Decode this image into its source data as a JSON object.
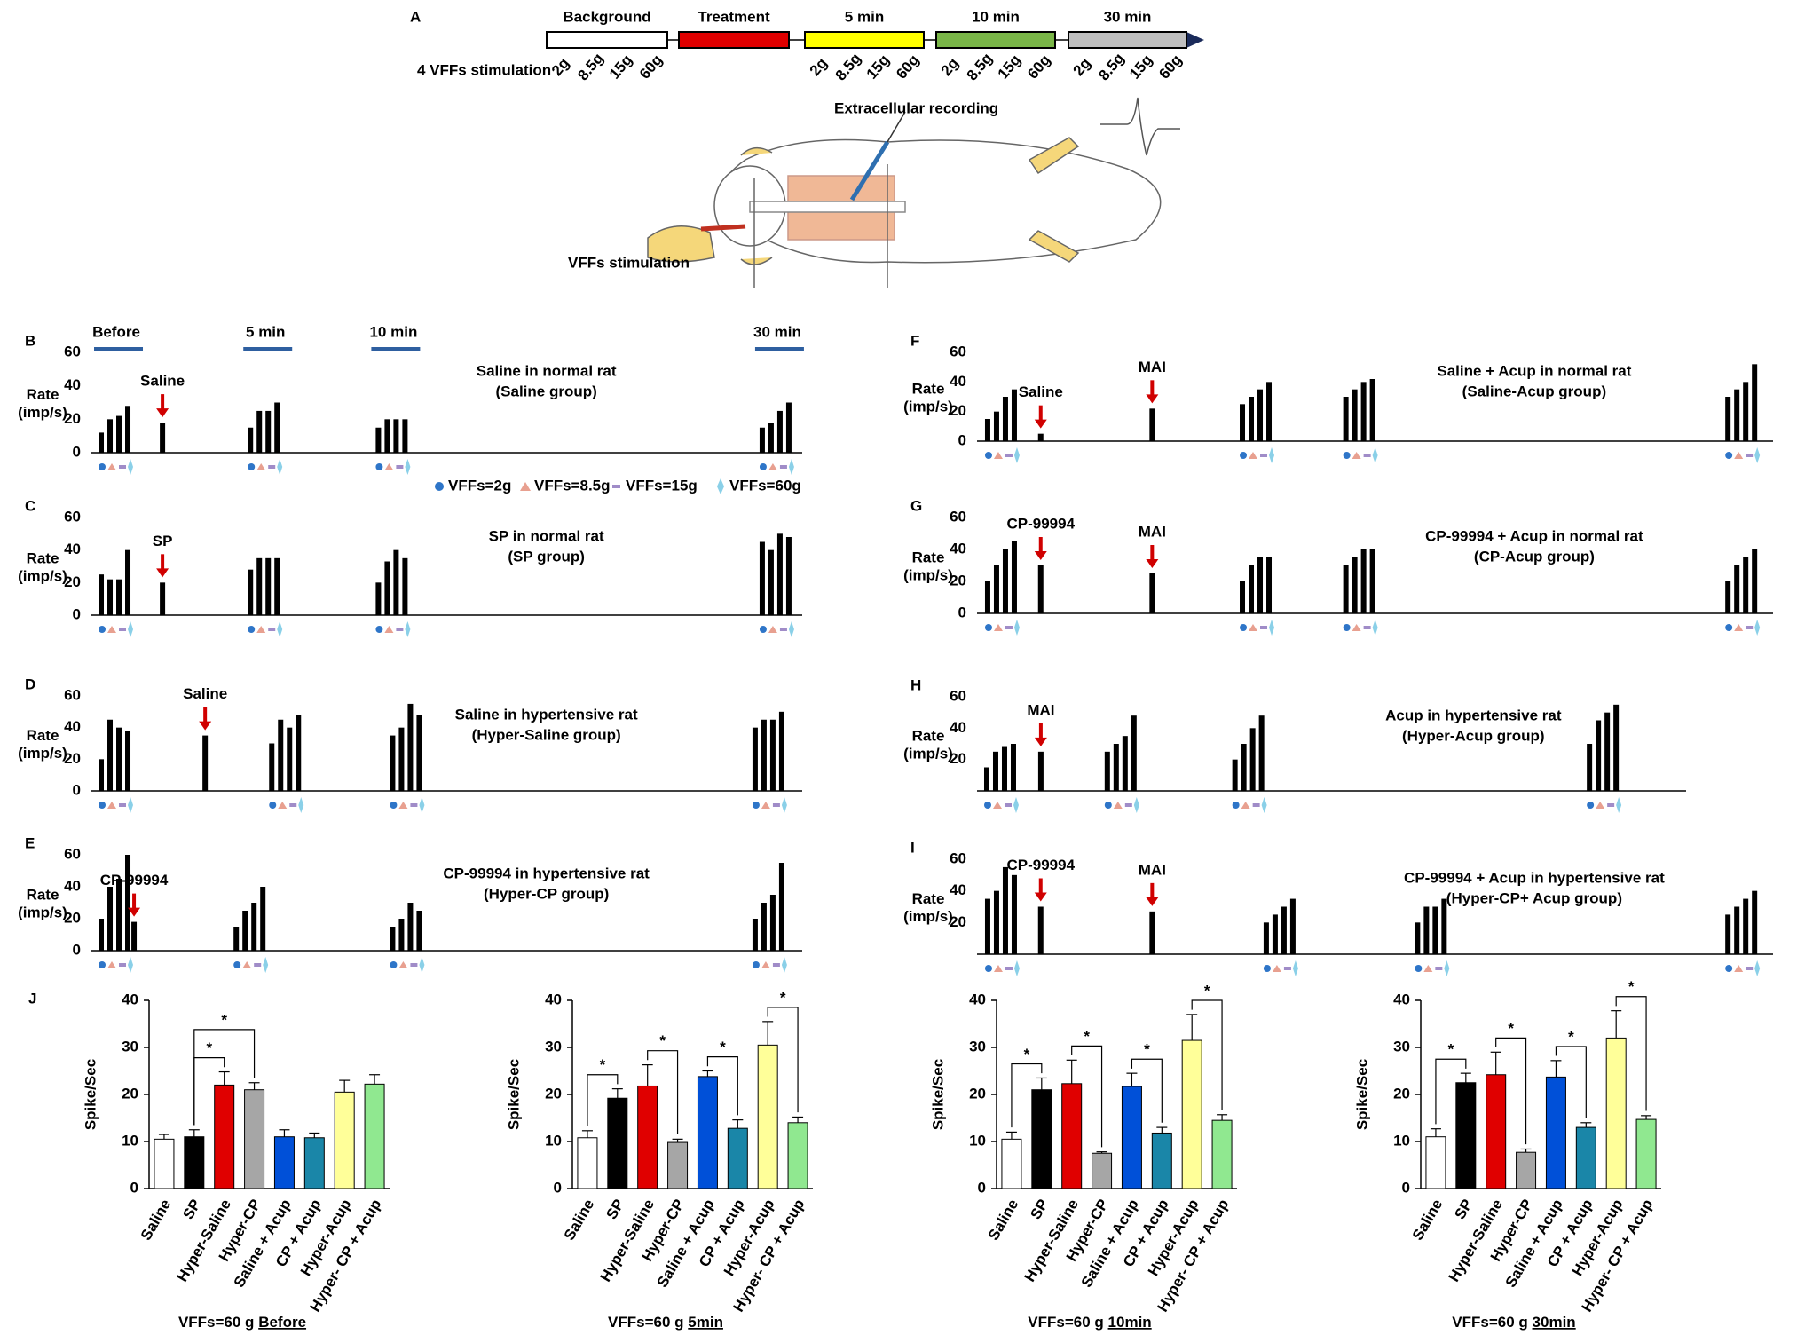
{
  "panel_a": {
    "label": "A",
    "phases": [
      {
        "name": "Background",
        "color": "#ffffff"
      },
      {
        "name": "Treatment",
        "color": "#e00000"
      },
      {
        "name": "5 min",
        "color": "#ffff00"
      },
      {
        "name": "10 min",
        "color": "#7ab648"
      },
      {
        "name": "30 min",
        "color": "#bfbfbf"
      }
    ],
    "stim_label": "4 VFFs stimulation",
    "grams": [
      "2g",
      "8.5g",
      "15g",
      "60g"
    ],
    "recording": "Extracellular recording",
    "stimulation": "VFFs stimulation"
  },
  "stim_legend": [
    "VFFs=2g",
    "VFFs=8.5g",
    "VFFs=15g",
    "VFFs=60g"
  ],
  "chart_data": [
    {
      "type": "trace",
      "label": "B",
      "title": "Saline in normal rat",
      "subtitle": "(Saline group)",
      "ylabel": "Rate",
      "ylabel_unit": "(imp/s)",
      "ylim": [
        0,
        60
      ],
      "yticks": [
        0,
        20,
        40,
        60
      ],
      "epoch_labels": [
        "Before",
        "5 min",
        "10 min",
        "30 min"
      ],
      "events": [
        {
          "name": "Saline",
          "value": 18
        }
      ],
      "epochs": [
        [
          12,
          20,
          22,
          28
        ],
        [
          15,
          25,
          25,
          30
        ],
        [
          15,
          20,
          20,
          20
        ],
        [
          15,
          18,
          25,
          30
        ]
      ]
    },
    {
      "type": "trace",
      "label": "C",
      "title": "SP in normal rat",
      "subtitle": "(SP group)",
      "ylabel": "Rate",
      "ylabel_unit": "(imp/s)",
      "ylim": [
        0,
        60
      ],
      "yticks": [
        0,
        20,
        40,
        60
      ],
      "events": [
        {
          "name": "SP",
          "value": 20
        }
      ],
      "epochs": [
        [
          25,
          22,
          22,
          40
        ],
        [
          28,
          35,
          35,
          35
        ],
        [
          20,
          33,
          40,
          35
        ],
        [
          45,
          40,
          50,
          48
        ]
      ]
    },
    {
      "type": "trace",
      "label": "D",
      "title": "Saline in hypertensive rat",
      "subtitle": "(Hyper-Saline group)",
      "ylabel": "Rate",
      "ylabel_unit": "(imp/s)",
      "ylim": [
        0,
        60
      ],
      "yticks": [
        0,
        20,
        40,
        60
      ],
      "events": [
        {
          "name": "Saline",
          "value": 35
        }
      ],
      "epochs": [
        [
          20,
          45,
          40,
          38
        ],
        [
          30,
          45,
          40,
          48
        ],
        [
          35,
          40,
          55,
          48
        ],
        [
          40,
          45,
          45,
          50
        ]
      ]
    },
    {
      "type": "trace",
      "label": "E",
      "title": "CP-99994 in hypertensive rat",
      "subtitle": "(Hyper-CP group)",
      "ylabel": "Rate",
      "ylabel_unit": "(imp/s)",
      "ylim": [
        0,
        60
      ],
      "yticks": [
        0,
        20,
        40,
        60
      ],
      "events": [
        {
          "name": "CP-99994",
          "value": 18
        }
      ],
      "epochs": [
        [
          20,
          40,
          45,
          60
        ],
        [
          15,
          25,
          30,
          40
        ],
        [
          15,
          20,
          30,
          25
        ],
        [
          20,
          30,
          35,
          55
        ]
      ]
    },
    {
      "type": "trace",
      "label": "F",
      "title": "Saline + Acup in normal rat",
      "subtitle": "(Saline-Acup group)",
      "ylabel": "Rate",
      "ylabel_unit": "(imp/s)",
      "ylim": [
        0,
        60
      ],
      "yticks": [
        0,
        20,
        40,
        60
      ],
      "events": [
        {
          "name": "Saline",
          "value": 5
        },
        {
          "name": "MAI",
          "value": 22
        }
      ],
      "epochs": [
        [
          15,
          20,
          30,
          35
        ],
        [
          25,
          30,
          35,
          40
        ],
        [
          30,
          35,
          40,
          42
        ],
        [
          30,
          35,
          40,
          52
        ]
      ]
    },
    {
      "type": "trace",
      "label": "G",
      "title": "CP-99994 + Acup in normal rat",
      "subtitle": "(CP-Acup group)",
      "ylabel": "Rate",
      "ylabel_unit": "(imp/s)",
      "ylim": [
        0,
        60
      ],
      "yticks": [
        0,
        20,
        40,
        60
      ],
      "events": [
        {
          "name": "CP-99994",
          "value": 30
        },
        {
          "name": "MAI",
          "value": 25
        }
      ],
      "epochs": [
        [
          20,
          30,
          40,
          45
        ],
        [
          20,
          30,
          35,
          35
        ],
        [
          30,
          35,
          40,
          40
        ],
        [
          20,
          30,
          35,
          40
        ]
      ]
    },
    {
      "type": "trace",
      "label": "H",
      "title": "Acup in hypertensive rat",
      "subtitle": "(Hyper-Acup group)",
      "ylabel": "Rate",
      "ylabel_unit": "(imp/s)",
      "ylim": [
        0,
        60
      ],
      "yticks": [
        20,
        40,
        60
      ],
      "events": [
        {
          "name": "MAI",
          "value": 25
        }
      ],
      "epochs": [
        [
          15,
          25,
          28,
          30
        ],
        [
          25,
          30,
          35,
          48
        ],
        [
          20,
          30,
          40,
          48
        ],
        [
          30,
          45,
          50,
          55
        ]
      ]
    },
    {
      "type": "trace",
      "label": "I",
      "title": "CP-99994 + Acup in hypertensive rat",
      "subtitle": "(Hyper-CP+ Acup group)",
      "ylabel": "Rate",
      "ylabel_unit": "(imp/s)",
      "ylim": [
        0,
        60
      ],
      "yticks": [
        20,
        40,
        60
      ],
      "events": [
        {
          "name": "CP-99994",
          "value": 30
        },
        {
          "name": "MAI",
          "value": 27
        }
      ],
      "epochs": [
        [
          35,
          40,
          55,
          50
        ],
        [
          20,
          25,
          30,
          35
        ],
        [
          20,
          30,
          30,
          35
        ],
        [
          25,
          30,
          35,
          40
        ]
      ]
    },
    {
      "type": "bar",
      "label": "J",
      "ylabel": "Spike/Sec",
      "xlabel": "VFFs=60 g",
      "xlabel_time": "Before",
      "ylim": [
        0,
        40
      ],
      "yticks": [
        0,
        10,
        20,
        30,
        40
      ],
      "categories": [
        "Saline",
        "SP",
        "Hyper-Saline",
        "Hyper-CP",
        "Saline + Acup",
        "CP + Acup",
        "Hyper-Acup",
        "Hyper- CP + Acup"
      ],
      "colors": [
        "#ffffff",
        "#000000",
        "#e00000",
        "#a6a6a6",
        "#0050d8",
        "#1a86a8",
        "#ffff99",
        "#90e890"
      ],
      "values": [
        10.5,
        11,
        22,
        21,
        11,
        10.8,
        20.5,
        22.2
      ],
      "errors": [
        1,
        1.5,
        2.8,
        1.5,
        1.5,
        1,
        2.5,
        2
      ],
      "significance": [
        [
          1,
          2
        ],
        [
          1,
          3
        ]
      ],
      "sig_label": "*"
    },
    {
      "type": "bar",
      "ylabel": "Spike/Sec",
      "xlabel": "VFFs=60 g",
      "xlabel_time": "5min",
      "ylim": [
        0,
        40
      ],
      "yticks": [
        0,
        10,
        20,
        30,
        40
      ],
      "categories": [
        "Saline",
        "SP",
        "Hyper-Saline",
        "Hyper-CP",
        "Saline + Acup",
        "CP + Acup",
        "Hyper-Acup",
        "Hyper- CP + Acup"
      ],
      "colors": [
        "#ffffff",
        "#000000",
        "#e00000",
        "#a6a6a6",
        "#0050d8",
        "#1a86a8",
        "#ffff99",
        "#90e890"
      ],
      "values": [
        10.8,
        19.2,
        21.8,
        9.8,
        23.8,
        12.8,
        30.5,
        14
      ],
      "errors": [
        1.5,
        2,
        4.5,
        0.7,
        1.2,
        1.8,
        5,
        1.2
      ],
      "significance": [
        [
          0,
          1
        ],
        [
          2,
          3
        ],
        [
          4,
          5
        ],
        [
          6,
          7
        ]
      ],
      "sig_label": "*"
    },
    {
      "type": "bar",
      "ylabel": "Spike/Sec",
      "xlabel": "VFFs=60 g",
      "xlabel_time": "10min",
      "ylim": [
        0,
        40
      ],
      "yticks": [
        0,
        10,
        20,
        30,
        40
      ],
      "categories": [
        "Saline",
        "SP",
        "Hyper-Saline",
        "Hyper-CP",
        "Saline + Acup",
        "CP + Acup",
        "Hyper-Acup",
        "Hyper- CP + Acup"
      ],
      "colors": [
        "#ffffff",
        "#000000",
        "#e00000",
        "#a6a6a6",
        "#0050d8",
        "#1a86a8",
        "#ffff99",
        "#90e890"
      ],
      "values": [
        10.5,
        21,
        22.3,
        7.5,
        21.7,
        11.8,
        31.5,
        14.5
      ],
      "errors": [
        1.5,
        2.5,
        5,
        0.3,
        2.8,
        1.2,
        5.5,
        1.2
      ],
      "significance": [
        [
          0,
          1
        ],
        [
          2,
          3
        ],
        [
          4,
          5
        ],
        [
          6,
          7
        ]
      ],
      "sig_label": "*"
    },
    {
      "type": "bar",
      "ylabel": "Spike/Sec",
      "xlabel": "VFFs=60 g",
      "xlabel_time": "30min",
      "ylim": [
        0,
        40
      ],
      "yticks": [
        0,
        10,
        20,
        30,
        40
      ],
      "categories": [
        "Saline",
        "SP",
        "Hyper-Saline",
        "Hyper-CP",
        "Saline + Acup",
        "CP + Acup",
        "Hyper-Acup",
        "Hyper- CP + Acup"
      ],
      "colors": [
        "#ffffff",
        "#000000",
        "#e00000",
        "#a6a6a6",
        "#0050d8",
        "#1a86a8",
        "#ffff99",
        "#90e890"
      ],
      "values": [
        11,
        22.5,
        24.2,
        7.7,
        23.7,
        13,
        32,
        14.7
      ],
      "errors": [
        1.7,
        2,
        4.8,
        0.7,
        3.5,
        1,
        5.8,
        0.8
      ],
      "significance": [
        [
          0,
          1
        ],
        [
          2,
          3
        ],
        [
          4,
          5
        ],
        [
          6,
          7
        ]
      ],
      "sig_label": "*"
    }
  ]
}
